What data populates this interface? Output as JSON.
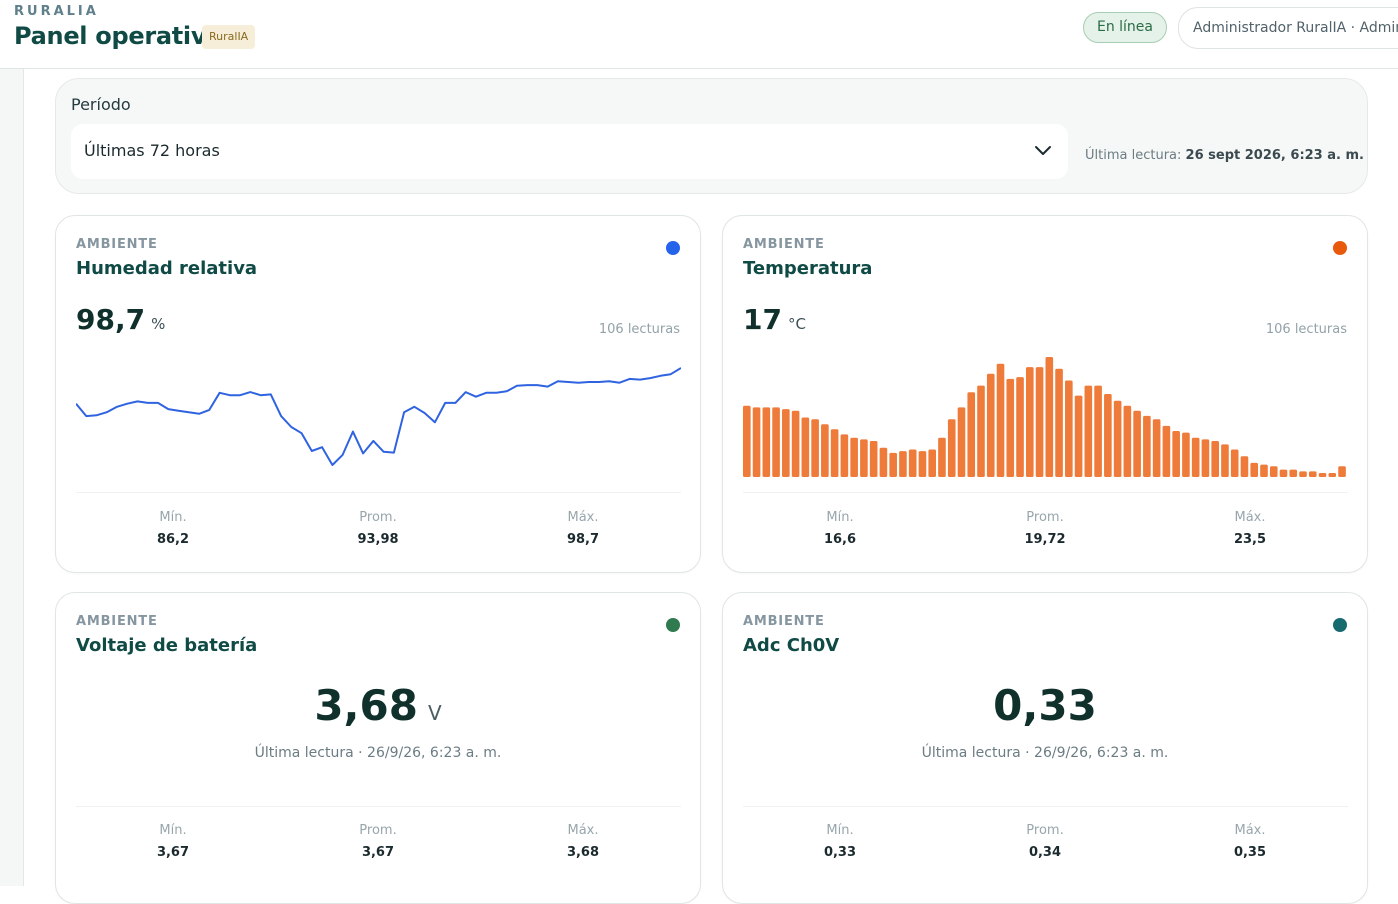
{
  "header": {
    "brand": "RURALIA",
    "title": "Panel operativo",
    "badge": "RuralIA",
    "status": "En línea",
    "user": "Administrador RuralIA · Admin"
  },
  "period": {
    "label": "Período",
    "selected": "Últimas 72 horas",
    "last_reading_label": "Última lectura:",
    "last_reading": "26 sept 2026, 6:23 a. m."
  },
  "cards": [
    {
      "category": "AMBIENTE",
      "title": "Humedad relativa",
      "value": "98,7",
      "unit": "%",
      "count": "106 lecturas",
      "color": "#2563eb",
      "chart": {
        "type": "line",
        "color": "#2f63e0",
        "values": [
          94.1,
          92.5,
          92.6,
          93.0,
          93.7,
          94.1,
          94.4,
          94.2,
          94.2,
          93.4,
          93.2,
          93.0,
          92.8,
          93.3,
          95.5,
          95.2,
          95.2,
          95.6,
          95.2,
          95.3,
          92.5,
          91.1,
          90.3,
          88.0,
          88.5,
          86.2,
          87.5,
          90.5,
          87.7,
          89.3,
          87.9,
          87.8,
          93.0,
          93.7,
          92.9,
          91.7,
          94.2,
          94.2,
          95.6,
          95.0,
          95.5,
          95.5,
          95.7,
          96.4,
          96.5,
          96.5,
          96.3,
          97.0,
          96.9,
          96.8,
          96.9,
          96.9,
          97.0,
          96.8,
          97.3,
          97.2,
          97.4,
          97.7,
          97.9,
          98.7
        ]
      },
      "stats": [
        {
          "label": "Mín.",
          "value": "86,2"
        },
        {
          "label": "Prom.",
          "value": "93,98"
        },
        {
          "label": "Máx.",
          "value": "98,7"
        }
      ]
    },
    {
      "category": "AMBIENTE",
      "title": "Temperatura",
      "value": "17",
      "unit": "°C",
      "count": "106 lecturas",
      "color": "#e8590c",
      "chart": {
        "type": "bar",
        "color": "#ee7b3a",
        "values": [
          20.6,
          20.5,
          20.5,
          20.5,
          20.4,
          20.3,
          19.9,
          19.8,
          19.5,
          19.2,
          18.9,
          18.7,
          18.6,
          18.5,
          18.1,
          17.8,
          17.9,
          18.0,
          17.9,
          18.0,
          18.7,
          19.8,
          20.5,
          21.4,
          21.8,
          22.5,
          23.1,
          22.2,
          22.3,
          22.9,
          22.9,
          23.5,
          22.8,
          22.1,
          21.2,
          21.8,
          21.8,
          21.3,
          20.9,
          20.6,
          20.3,
          20.0,
          19.8,
          19.4,
          19.1,
          19.0,
          18.7,
          18.6,
          18.5,
          18.3,
          18.0,
          17.6,
          17.2,
          17.1,
          17.0,
          16.8,
          16.8,
          16.7,
          16.7,
          16.6,
          16.6,
          17.0
        ]
      },
      "stats": [
        {
          "label": "Mín.",
          "value": "16,6"
        },
        {
          "label": "Prom.",
          "value": "19,72"
        },
        {
          "label": "Máx.",
          "value": "23,5"
        }
      ]
    },
    {
      "category": "AMBIENTE",
      "title": "Voltaje de batería",
      "value": "3,68",
      "unit": "V",
      "last_reading": "Última lectura · 26/9/26, 6:23 a. m.",
      "color": "#2f7a4f",
      "stats": [
        {
          "label": "Mín.",
          "value": "3,67"
        },
        {
          "label": "Prom.",
          "value": "3,67"
        },
        {
          "label": "Máx.",
          "value": "3,68"
        }
      ]
    },
    {
      "category": "AMBIENTE",
      "title": "Adc Ch0V",
      "value": "0,33",
      "last_reading": "Última lectura · 26/9/26, 6:23 a. m.",
      "color": "#176b6f",
      "stats": [
        {
          "label": "Mín.",
          "value": "0,33"
        },
        {
          "label": "Prom.",
          "value": "0,34"
        },
        {
          "label": "Máx.",
          "value": "0,35"
        }
      ]
    }
  ]
}
